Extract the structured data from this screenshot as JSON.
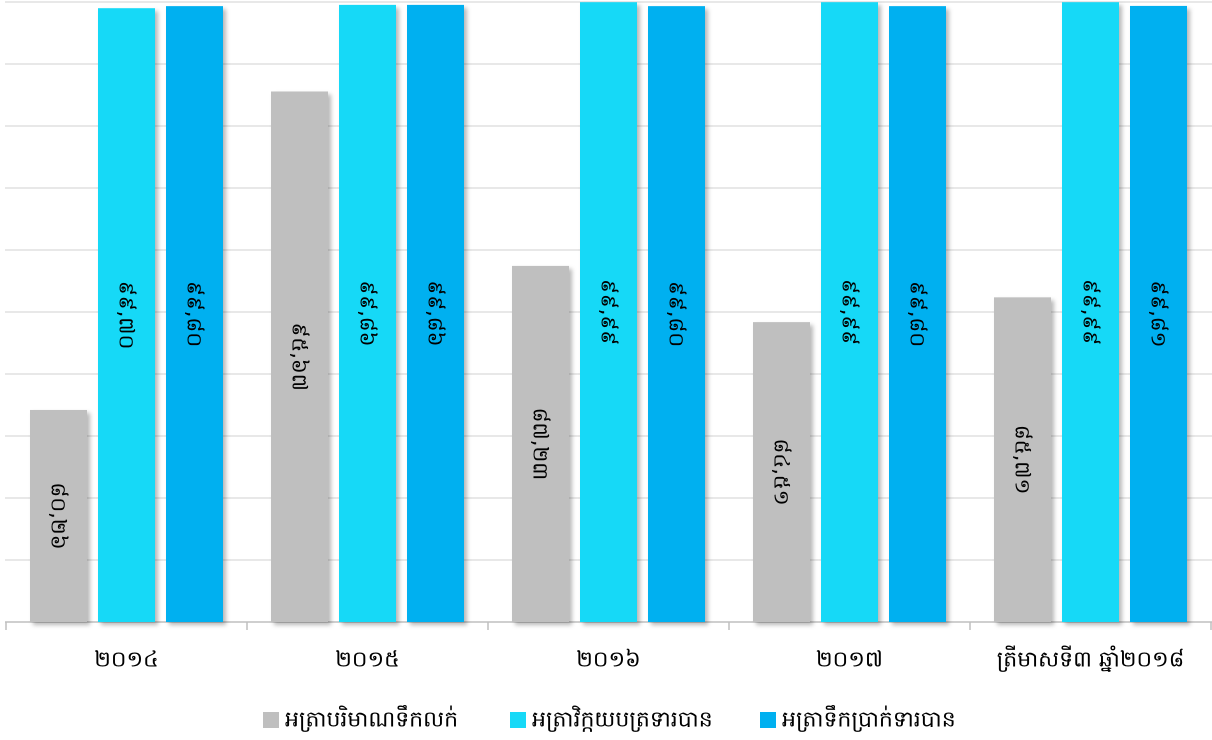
{
  "chart_data": {
    "type": "bar",
    "categories": [
      "២០១៤",
      "២០១៥",
      "២០១៦",
      "២០១៧",
      "ត្រីមាសទី៣ ឆ្នាំ២០១៨"
    ],
    "series": [
      {
        "name": "អត្រាបរិមាណទឹកលក់",
        "color": "#bfbfbf",
        "values": [
          80.26,
          95.67,
          87.23,
          84.51,
          85.71
        ],
        "labels": [
          "៨០,២៦",
          "៩៥,៦៧",
          "៨៧,២៣",
          "៨៤,៥១",
          "៨៥,៧១"
        ]
      },
      {
        "name": "អត្រាវិក្កយបត្រទារបាន",
        "color": "#17d9f7",
        "values": [
          99.7,
          99.86,
          99.99,
          99.99,
          99.99
        ],
        "labels": [
          "៩៩,៧០",
          "៩៩,៨៦",
          "៩៩,៩៩",
          "៩៩,៩៩",
          "៩៩,៩៩"
        ]
      },
      {
        "name": "អត្រាទឹកប្រាក់ទារបាន",
        "color": "#00b0f0",
        "values": [
          99.8,
          99.86,
          99.8,
          99.8,
          99.81
        ],
        "labels": [
          "៩៩,៨០",
          "៩៩,៨៦",
          "៩៩,៨០",
          "៩៩,៨០",
          "៩៩,៨១"
        ]
      }
    ],
    "ylim": [
      70,
      100
    ],
    "grid": true,
    "legend": "bottom",
    "title": "",
    "xlabel": "",
    "ylabel": ""
  }
}
